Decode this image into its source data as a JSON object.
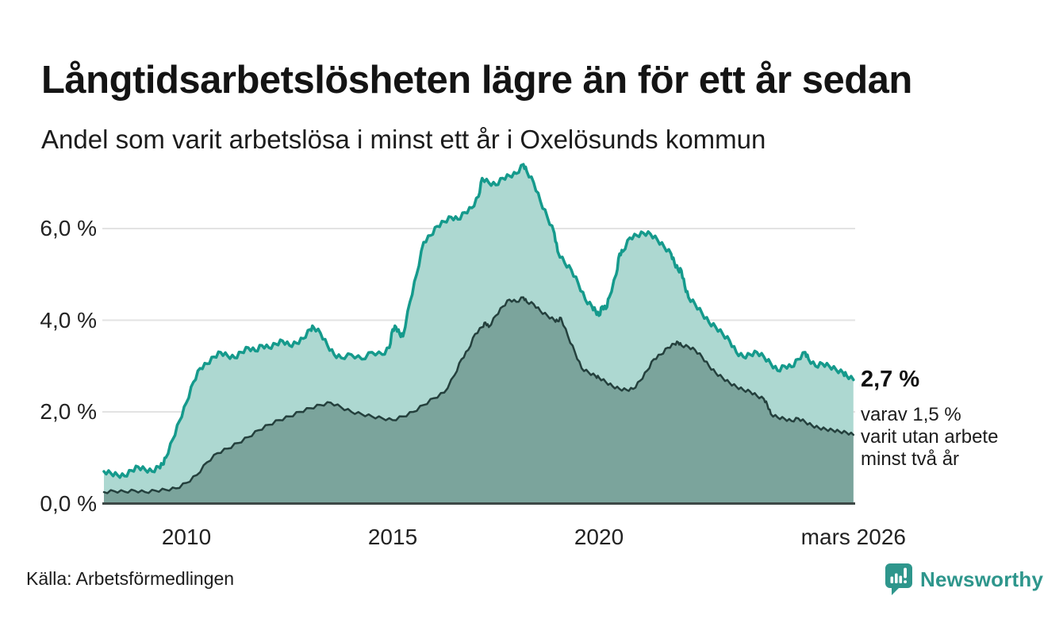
{
  "header": {
    "title": "Långtidsarbetslösheten lägre än för ett år sedan",
    "subtitle": "Andel som varit arbetslösa i minst ett år i Oxelösunds kommun"
  },
  "annotation": {
    "primary": "2,7 %",
    "secondary_lines": [
      "varav 1,5 %",
      "varit utan arbete",
      "minst två år"
    ]
  },
  "footer": {
    "source": "Källa: Arbetsförmedlingen",
    "brand": "Newsworthy"
  },
  "colors": {
    "grid": "#e3e3e3",
    "axis": "#3d4846",
    "brand_teal": "#2e968c",
    "text_dark": "#1a1a1a"
  },
  "chart_data": {
    "type": "area",
    "title": "Långtidsarbetslösheten lägre än för ett år sedan",
    "subtitle": "Andel som varit arbetslösa i minst ett år i Oxelösunds kommun",
    "unit": "%",
    "grid": true,
    "legend_position": "annotation-right",
    "x_axis": {
      "range": [
        2008.0,
        2026.25
      ],
      "ticks": [
        {
          "label": "2010",
          "year": 2010
        },
        {
          "label": "2015",
          "year": 2015
        },
        {
          "label": "2020",
          "year": 2020
        },
        {
          "label": "mars 2026",
          "year": 2026.17
        }
      ]
    },
    "y_axis": {
      "range": [
        0,
        7.6
      ],
      "gridlines": [
        2,
        4,
        6
      ],
      "ticks": [
        {
          "label": "0,0 %",
          "value": 0
        },
        {
          "label": "2,0 %",
          "value": 2
        },
        {
          "label": "4,0 %",
          "value": 4
        },
        {
          "label": "6,0 %",
          "value": 6
        }
      ]
    },
    "series": [
      {
        "id": "minst-ett-ar",
        "name": "Arbetslösa minst ett år",
        "end_label": "2,7 %",
        "color": "#159a8c",
        "fill": "#add8d1",
        "points": [
          [
            2008.0,
            0.7
          ],
          [
            2008.17,
            0.66
          ],
          [
            2008.33,
            0.62
          ],
          [
            2008.5,
            0.6
          ],
          [
            2008.67,
            0.72
          ],
          [
            2008.83,
            0.8
          ],
          [
            2009.0,
            0.74
          ],
          [
            2009.17,
            0.7
          ],
          [
            2009.33,
            0.8
          ],
          [
            2009.42,
            0.85
          ],
          [
            2009.5,
            1.0
          ],
          [
            2009.67,
            1.4
          ],
          [
            2009.83,
            1.8
          ],
          [
            2010.0,
            2.2
          ],
          [
            2010.17,
            2.65
          ],
          [
            2010.33,
            2.95
          ],
          [
            2010.5,
            3.05
          ],
          [
            2010.67,
            3.2
          ],
          [
            2010.83,
            3.3
          ],
          [
            2011.0,
            3.22
          ],
          [
            2011.17,
            3.18
          ],
          [
            2011.33,
            3.3
          ],
          [
            2011.5,
            3.4
          ],
          [
            2011.67,
            3.33
          ],
          [
            2011.83,
            3.45
          ],
          [
            2012.0,
            3.4
          ],
          [
            2012.17,
            3.48
          ],
          [
            2012.33,
            3.55
          ],
          [
            2012.5,
            3.45
          ],
          [
            2012.67,
            3.5
          ],
          [
            2012.83,
            3.6
          ],
          [
            2013.0,
            3.8
          ],
          [
            2013.08,
            3.85
          ],
          [
            2013.25,
            3.72
          ],
          [
            2013.42,
            3.45
          ],
          [
            2013.58,
            3.25
          ],
          [
            2013.75,
            3.18
          ],
          [
            2014.0,
            3.25
          ],
          [
            2014.25,
            3.15
          ],
          [
            2014.5,
            3.3
          ],
          [
            2014.75,
            3.25
          ],
          [
            2014.92,
            3.4
          ],
          [
            2015.0,
            3.8
          ],
          [
            2015.08,
            3.85
          ],
          [
            2015.17,
            3.7
          ],
          [
            2015.25,
            3.65
          ],
          [
            2015.42,
            4.4
          ],
          [
            2015.58,
            5.0
          ],
          [
            2015.75,
            5.7
          ],
          [
            2015.92,
            5.85
          ],
          [
            2016.08,
            6.05
          ],
          [
            2016.25,
            6.15
          ],
          [
            2016.42,
            6.25
          ],
          [
            2016.58,
            6.2
          ],
          [
            2016.75,
            6.35
          ],
          [
            2016.92,
            6.45
          ],
          [
            2017.08,
            6.7
          ],
          [
            2017.17,
            7.1
          ],
          [
            2017.33,
            7.0
          ],
          [
            2017.5,
            6.95
          ],
          [
            2017.67,
            7.1
          ],
          [
            2017.83,
            7.15
          ],
          [
            2018.0,
            7.2
          ],
          [
            2018.17,
            7.4
          ],
          [
            2018.25,
            7.25
          ],
          [
            2018.42,
            7.0
          ],
          [
            2018.58,
            6.6
          ],
          [
            2018.75,
            6.25
          ],
          [
            2018.92,
            5.9
          ],
          [
            2019.0,
            5.5
          ],
          [
            2019.17,
            5.25
          ],
          [
            2019.33,
            5.1
          ],
          [
            2019.5,
            4.8
          ],
          [
            2019.67,
            4.45
          ],
          [
            2019.83,
            4.3
          ],
          [
            2019.92,
            4.2
          ],
          [
            2020.0,
            4.1
          ],
          [
            2020.08,
            4.3
          ],
          [
            2020.17,
            4.25
          ],
          [
            2020.25,
            4.5
          ],
          [
            2020.42,
            5.0
          ],
          [
            2020.5,
            5.45
          ],
          [
            2020.58,
            5.5
          ],
          [
            2020.75,
            5.8
          ],
          [
            2020.92,
            5.85
          ],
          [
            2021.08,
            5.9
          ],
          [
            2021.25,
            5.88
          ],
          [
            2021.42,
            5.75
          ],
          [
            2021.58,
            5.6
          ],
          [
            2021.75,
            5.45
          ],
          [
            2021.83,
            5.25
          ],
          [
            2021.92,
            5.1
          ],
          [
            2022.0,
            5.08
          ],
          [
            2022.08,
            4.75
          ],
          [
            2022.17,
            4.5
          ],
          [
            2022.33,
            4.35
          ],
          [
            2022.5,
            4.15
          ],
          [
            2022.67,
            3.95
          ],
          [
            2022.83,
            3.85
          ],
          [
            2023.0,
            3.7
          ],
          [
            2023.17,
            3.55
          ],
          [
            2023.33,
            3.3
          ],
          [
            2023.5,
            3.2
          ],
          [
            2023.67,
            3.25
          ],
          [
            2023.83,
            3.3
          ],
          [
            2024.0,
            3.2
          ],
          [
            2024.17,
            3.05
          ],
          [
            2024.33,
            2.9
          ],
          [
            2024.5,
            3.0
          ],
          [
            2024.67,
            2.98
          ],
          [
            2024.83,
            3.15
          ],
          [
            2025.0,
            3.3
          ],
          [
            2025.08,
            3.15
          ],
          [
            2025.25,
            3.0
          ],
          [
            2025.42,
            3.05
          ],
          [
            2025.58,
            3.0
          ],
          [
            2025.75,
            2.92
          ],
          [
            2025.92,
            2.85
          ],
          [
            2026.0,
            2.8
          ],
          [
            2026.17,
            2.7
          ]
        ]
      },
      {
        "id": "minst-tva-ar",
        "name": "Arbetslösa minst två år",
        "end_label": "1,5 %",
        "color": "#24403d",
        "fill": "#7ba49c",
        "points": [
          [
            2008.0,
            0.25
          ],
          [
            2008.25,
            0.27
          ],
          [
            2008.5,
            0.26
          ],
          [
            2008.75,
            0.28
          ],
          [
            2009.0,
            0.25
          ],
          [
            2009.25,
            0.28
          ],
          [
            2009.5,
            0.3
          ],
          [
            2009.75,
            0.33
          ],
          [
            2010.0,
            0.45
          ],
          [
            2010.25,
            0.62
          ],
          [
            2010.5,
            0.9
          ],
          [
            2010.75,
            1.1
          ],
          [
            2011.0,
            1.2
          ],
          [
            2011.25,
            1.32
          ],
          [
            2011.5,
            1.45
          ],
          [
            2011.75,
            1.6
          ],
          [
            2012.0,
            1.72
          ],
          [
            2012.25,
            1.82
          ],
          [
            2012.5,
            1.9
          ],
          [
            2012.75,
            2.0
          ],
          [
            2013.0,
            2.08
          ],
          [
            2013.25,
            2.15
          ],
          [
            2013.5,
            2.2
          ],
          [
            2013.75,
            2.1
          ],
          [
            2014.0,
            2.0
          ],
          [
            2014.25,
            1.95
          ],
          [
            2014.5,
            1.9
          ],
          [
            2014.75,
            1.86
          ],
          [
            2015.0,
            1.82
          ],
          [
            2015.25,
            1.9
          ],
          [
            2015.5,
            2.0
          ],
          [
            2015.75,
            2.15
          ],
          [
            2016.0,
            2.3
          ],
          [
            2016.25,
            2.42
          ],
          [
            2016.5,
            2.8
          ],
          [
            2016.67,
            3.15
          ],
          [
            2016.83,
            3.35
          ],
          [
            2017.0,
            3.7
          ],
          [
            2017.17,
            3.85
          ],
          [
            2017.25,
            3.95
          ],
          [
            2017.33,
            3.85
          ],
          [
            2017.5,
            4.1
          ],
          [
            2017.67,
            4.3
          ],
          [
            2017.83,
            4.45
          ],
          [
            2018.0,
            4.4
          ],
          [
            2018.17,
            4.5
          ],
          [
            2018.25,
            4.4
          ],
          [
            2018.42,
            4.35
          ],
          [
            2018.58,
            4.2
          ],
          [
            2018.75,
            4.1
          ],
          [
            2018.92,
            4.0
          ],
          [
            2019.0,
            3.98
          ],
          [
            2019.08,
            4.05
          ],
          [
            2019.25,
            3.65
          ],
          [
            2019.42,
            3.3
          ],
          [
            2019.58,
            2.95
          ],
          [
            2019.75,
            2.86
          ],
          [
            2019.92,
            2.78
          ],
          [
            2020.0,
            2.75
          ],
          [
            2020.17,
            2.65
          ],
          [
            2020.33,
            2.56
          ],
          [
            2020.5,
            2.5
          ],
          [
            2020.67,
            2.48
          ],
          [
            2020.83,
            2.5
          ],
          [
            2021.0,
            2.68
          ],
          [
            2021.17,
            2.9
          ],
          [
            2021.33,
            3.15
          ],
          [
            2021.5,
            3.25
          ],
          [
            2021.67,
            3.4
          ],
          [
            2021.83,
            3.48
          ],
          [
            2021.92,
            3.52
          ],
          [
            2022.0,
            3.45
          ],
          [
            2022.17,
            3.42
          ],
          [
            2022.33,
            3.35
          ],
          [
            2022.5,
            3.2
          ],
          [
            2022.67,
            3.0
          ],
          [
            2022.83,
            2.85
          ],
          [
            2023.0,
            2.74
          ],
          [
            2023.17,
            2.63
          ],
          [
            2023.33,
            2.55
          ],
          [
            2023.5,
            2.48
          ],
          [
            2023.67,
            2.44
          ],
          [
            2023.83,
            2.35
          ],
          [
            2024.0,
            2.28
          ],
          [
            2024.08,
            2.16
          ],
          [
            2024.17,
            1.95
          ],
          [
            2024.33,
            1.88
          ],
          [
            2024.5,
            1.85
          ],
          [
            2024.67,
            1.8
          ],
          [
            2024.83,
            1.86
          ],
          [
            2025.0,
            1.78
          ],
          [
            2025.17,
            1.7
          ],
          [
            2025.33,
            1.65
          ],
          [
            2025.5,
            1.62
          ],
          [
            2025.67,
            1.6
          ],
          [
            2025.83,
            1.57
          ],
          [
            2026.0,
            1.55
          ],
          [
            2026.17,
            1.5
          ]
        ]
      }
    ]
  }
}
